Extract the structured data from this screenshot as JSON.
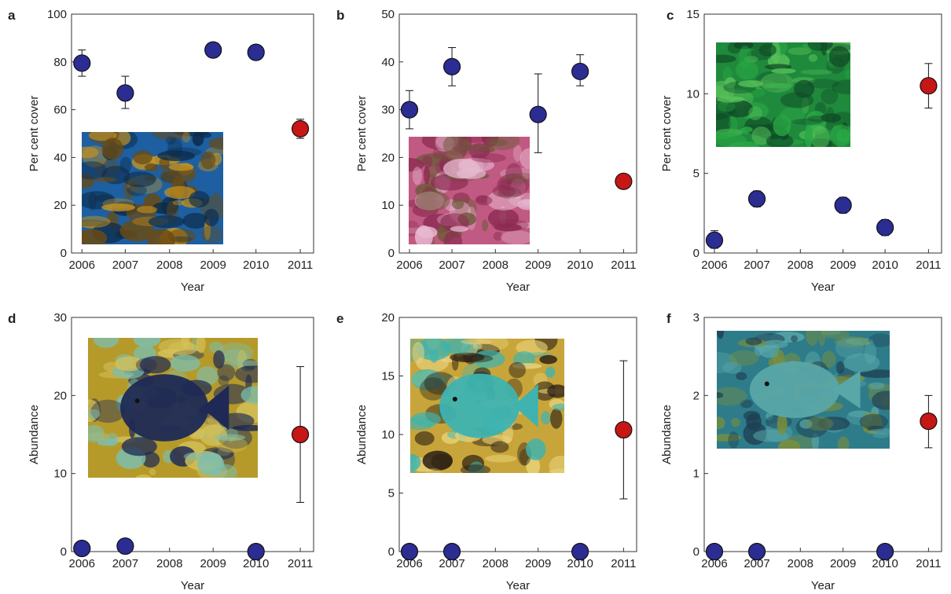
{
  "marker_colors": {
    "pre_2011": "#2b2d93",
    "year_2011": "#c61616",
    "marker_edge": "#111111"
  },
  "chart_data": [
    {
      "panel": "a",
      "type": "scatter",
      "xlabel": "Year",
      "ylabel": "Per cent cover",
      "x_ticks": [
        "2006",
        "2007",
        "2008",
        "2009",
        "2010",
        "2011"
      ],
      "y_ticks": [
        "0",
        "20",
        "40",
        "60",
        "80",
        "100"
      ],
      "ylim": [
        0,
        100
      ],
      "xlim": [
        2006,
        2011
      ],
      "points": [
        {
          "x": 2006,
          "y": 79.5,
          "err_low": 74,
          "err_high": 85
        },
        {
          "x": 2007,
          "y": 67,
          "err_low": 60.5,
          "err_high": 74
        },
        {
          "x": 2009,
          "y": 85,
          "err_low": null,
          "err_high": null
        },
        {
          "x": 2010,
          "y": 84,
          "err_low": null,
          "err_high": null
        },
        {
          "x": 2011,
          "y": 52,
          "err_low": 48,
          "err_high": 56
        }
      ],
      "photo": {
        "subject": "kelp",
        "colors": [
          "#1d5fa0",
          "#c8941f",
          "#6b4a12",
          "#0d2b4a"
        ]
      }
    },
    {
      "panel": "b",
      "type": "scatter",
      "xlabel": "Year",
      "ylabel": "Per cent cover",
      "x_ticks": [
        "2006",
        "2007",
        "2008",
        "2009",
        "2010",
        "2011"
      ],
      "y_ticks": [
        "0",
        "10",
        "20",
        "30",
        "40",
        "50"
      ],
      "ylim": [
        0,
        50
      ],
      "xlim": [
        2006,
        2011
      ],
      "points": [
        {
          "x": 2006,
          "y": 30,
          "err_low": 26,
          "err_high": 34
        },
        {
          "x": 2007,
          "y": 39,
          "err_low": 35,
          "err_high": 43
        },
        {
          "x": 2009,
          "y": 29,
          "err_low": 21,
          "err_high": 37.5
        },
        {
          "x": 2010,
          "y": 38,
          "err_low": 35,
          "err_high": 41.5
        },
        {
          "x": 2011,
          "y": 15,
          "err_low": null,
          "err_high": null
        }
      ],
      "photo": {
        "subject": "coralline algae",
        "colors": [
          "#c05a82",
          "#e7b9d0",
          "#6e5a3a",
          "#8c2b52"
        ]
      }
    },
    {
      "panel": "c",
      "type": "scatter",
      "xlabel": "Year",
      "ylabel": "Per cent cover",
      "x_ticks": [
        "2006",
        "2007",
        "2008",
        "2009",
        "2010",
        "2011"
      ],
      "y_ticks": [
        "0",
        "5",
        "10",
        "15"
      ],
      "ylim": [
        0,
        15
      ],
      "xlim": [
        2006,
        2011
      ],
      "points": [
        {
          "x": 2006,
          "y": 0.8,
          "err_low": 0.3,
          "err_high": 1.4
        },
        {
          "x": 2007,
          "y": 3.4,
          "err_low": 2.9,
          "err_high": 3.9
        },
        {
          "x": 2009,
          "y": 3.0,
          "err_low": 2.5,
          "err_high": 3.5
        },
        {
          "x": 2010,
          "y": 1.6,
          "err_low": 1.1,
          "err_high": 2.1
        },
        {
          "x": 2011,
          "y": 10.5,
          "err_low": 9.1,
          "err_high": 11.9
        }
      ],
      "photo": {
        "subject": "green turf algae",
        "colors": [
          "#1f8a3c",
          "#58c25a",
          "#0f4a26",
          "#2aa846"
        ]
      }
    },
    {
      "panel": "d",
      "type": "scatter",
      "xlabel": "Year",
      "ylabel": "Abundance",
      "x_ticks": [
        "2006",
        "2007",
        "2008",
        "2009",
        "2010",
        "2011"
      ],
      "y_ticks": [
        "0",
        "10",
        "20",
        "30"
      ],
      "ylim": [
        0,
        30
      ],
      "xlim": [
        2006,
        2011
      ],
      "points": [
        {
          "x": 2006,
          "y": 0.4,
          "err_low": null,
          "err_high": null
        },
        {
          "x": 2007,
          "y": 0.7,
          "err_low": null,
          "err_high": null
        },
        {
          "x": 2010,
          "y": 0.0,
          "err_low": null,
          "err_high": null
        },
        {
          "x": 2011,
          "y": 15,
          "err_low": 6.3,
          "err_high": 23.7
        }
      ],
      "photo": {
        "subject": "angelfish",
        "colors": [
          "#b59a2a",
          "#1e2a55",
          "#7bbfb0",
          "#d4c15a"
        ]
      }
    },
    {
      "panel": "e",
      "type": "scatter",
      "xlabel": "Year",
      "ylabel": "Abundance",
      "x_ticks": [
        "2006",
        "2007",
        "2008",
        "2009",
        "2010",
        "2011"
      ],
      "y_ticks": [
        "0",
        "5",
        "10",
        "15",
        "20"
      ],
      "ylim": [
        0,
        20
      ],
      "xlim": [
        2006,
        2011
      ],
      "points": [
        {
          "x": 2006,
          "y": 0,
          "err_low": null,
          "err_high": null
        },
        {
          "x": 2007,
          "y": 0,
          "err_low": null,
          "err_high": null
        },
        {
          "x": 2010,
          "y": 0,
          "err_low": null,
          "err_high": null
        },
        {
          "x": 2011,
          "y": 10.4,
          "err_low": 4.5,
          "err_high": 16.3
        }
      ],
      "photo": {
        "subject": "butterflyfish",
        "colors": [
          "#c8a53a",
          "#3eb3b0",
          "#2a1e14",
          "#e8d27a"
        ]
      }
    },
    {
      "panel": "f",
      "type": "scatter",
      "xlabel": "Year",
      "ylabel": "Abundance",
      "x_ticks": [
        "2006",
        "2007",
        "2008",
        "2009",
        "2010",
        "2011"
      ],
      "y_ticks": [
        "0",
        "1",
        "2",
        "3"
      ],
      "ylim": [
        0,
        3
      ],
      "xlim": [
        2006,
        2011
      ],
      "points": [
        {
          "x": 2006,
          "y": 0,
          "err_low": null,
          "err_high": null
        },
        {
          "x": 2007,
          "y": 0,
          "err_low": null,
          "err_high": null
        },
        {
          "x": 2010,
          "y": 0,
          "err_low": null,
          "err_high": null
        },
        {
          "x": 2011,
          "y": 1.67,
          "err_low": 1.33,
          "err_high": 2.0
        }
      ],
      "photo": {
        "subject": "wrasse",
        "colors": [
          "#2e7c8a",
          "#5aa7a8",
          "#1f3f52",
          "#7d8f3a"
        ]
      }
    }
  ]
}
